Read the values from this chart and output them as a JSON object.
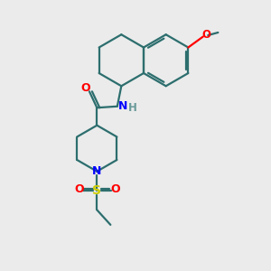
{
  "background_color": "#ebebeb",
  "bond_color": "#2d6e6e",
  "N_color": "#0000ff",
  "O_color": "#ff0000",
  "S_color": "#cccc00",
  "H_color": "#6a9a9a",
  "line_width": 1.6,
  "figsize": [
    3.0,
    3.0
  ],
  "dpi": 100,
  "xlim": [
    0,
    10
  ],
  "ylim": [
    0,
    10
  ]
}
